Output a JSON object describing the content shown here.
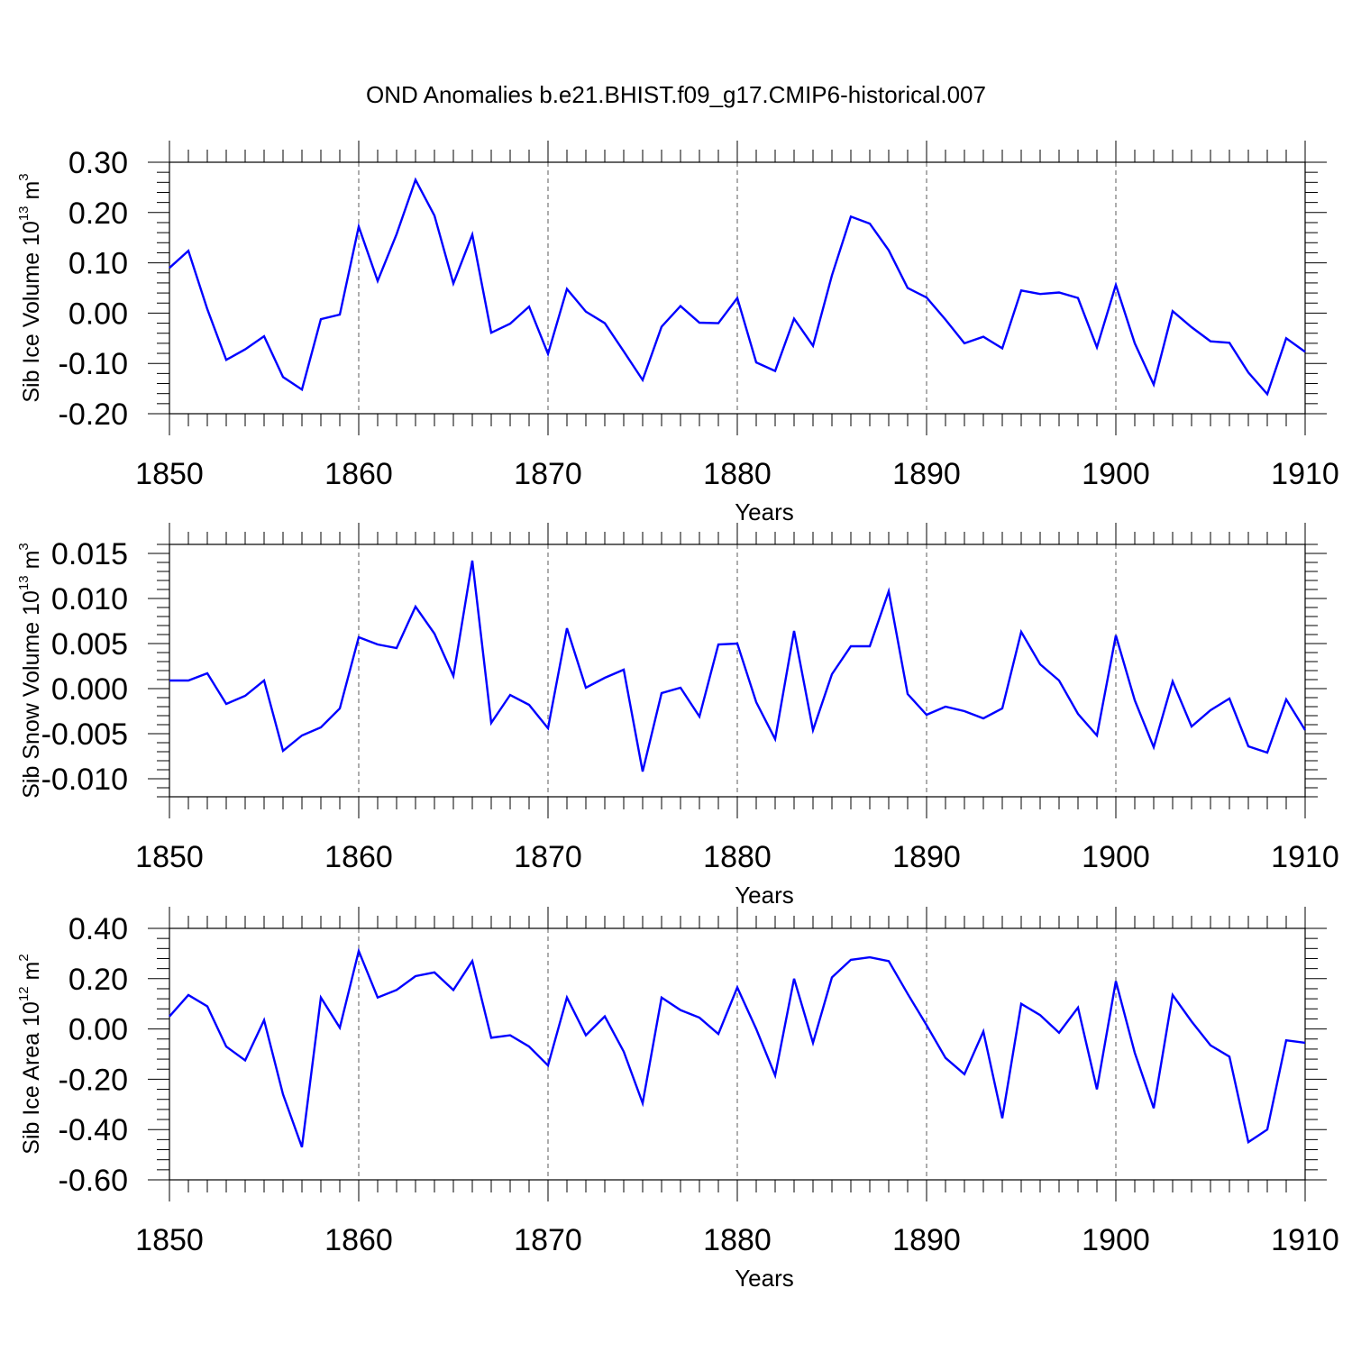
{
  "figure": {
    "title": "OND Anomalies b.e21.BHIST.f09_g17.CMIP6-historical.007",
    "line_color": "#0000ff"
  },
  "chart_data": [
    {
      "type": "line",
      "xlabel": "Years",
      "ylabel": {
        "prefix": "Sib Ice Volume 10",
        "exponent": "13",
        "unit": " m",
        "unit_exponent": "3"
      },
      "xlim": [
        1850,
        1910
      ],
      "ylim": [
        -0.2,
        0.3
      ],
      "x_ticks": [
        "1850",
        "1860",
        "1870",
        "1880",
        "1890",
        "1900",
        "1910"
      ],
      "y_ticks": [
        "-0.20",
        "-0.10",
        "0.00",
        "0.10",
        "0.20",
        "0.30"
      ],
      "grid": "dashed vertical lines at major x ticks",
      "series": [
        {
          "x": [
            1850,
            1851,
            1852,
            1853,
            1854,
            1855,
            1856,
            1857,
            1858,
            1859,
            1860,
            1861,
            1862,
            1863,
            1864,
            1865,
            1866,
            1867,
            1868,
            1869,
            1870,
            1871,
            1872,
            1873,
            1874,
            1875,
            1876,
            1877,
            1878,
            1879,
            1880,
            1881,
            1882,
            1883,
            1884,
            1885,
            1886,
            1887,
            1888,
            1889,
            1890,
            1891,
            1892,
            1893,
            1894,
            1895,
            1896,
            1897,
            1898,
            1899,
            1900,
            1901,
            1902,
            1903,
            1904,
            1905,
            1906,
            1907,
            1908,
            1909,
            1910
          ],
          "values": [
            0.09,
            0.124,
            0.008,
            -0.093,
            -0.072,
            -0.046,
            -0.127,
            -0.152,
            -0.012,
            -0.003,
            0.172,
            0.064,
            0.157,
            0.265,
            0.194,
            0.059,
            0.156,
            -0.039,
            -0.021,
            0.013,
            -0.081,
            0.048,
            0.003,
            -0.02,
            -0.076,
            -0.133,
            -0.027,
            0.014,
            -0.019,
            -0.02,
            0.03,
            -0.098,
            -0.115,
            -0.011,
            -0.065,
            0.075,
            0.192,
            0.178,
            0.125,
            0.05,
            0.031,
            -0.013,
            -0.06,
            -0.047,
            -0.07,
            0.045,
            0.038,
            0.041,
            0.03,
            -0.068,
            0.056,
            -0.06,
            -0.142,
            0.004,
            -0.028,
            -0.056,
            -0.059,
            -0.118,
            -0.161,
            -0.05,
            -0.077
          ]
        }
      ]
    },
    {
      "type": "line",
      "xlabel": "Years",
      "ylabel": {
        "prefix": "Sib Snow Volume 10",
        "exponent": "13",
        "unit": " m",
        "unit_exponent": "3"
      },
      "xlim": [
        1850,
        1910
      ],
      "ylim": [
        -0.012,
        0.016
      ],
      "x_ticks": [
        "1850",
        "1860",
        "1870",
        "1880",
        "1890",
        "1900",
        "1910"
      ],
      "y_ticks": [
        "-0.010",
        "-0.005",
        "0.000",
        "0.005",
        "0.010",
        "0.015"
      ],
      "grid": "dashed vertical lines at major x ticks",
      "series": [
        {
          "x": [
            1850,
            1851,
            1852,
            1853,
            1854,
            1855,
            1856,
            1857,
            1858,
            1859,
            1860,
            1861,
            1862,
            1863,
            1864,
            1865,
            1866,
            1867,
            1868,
            1869,
            1870,
            1871,
            1872,
            1873,
            1874,
            1875,
            1876,
            1877,
            1878,
            1879,
            1880,
            1881,
            1882,
            1883,
            1884,
            1885,
            1886,
            1887,
            1888,
            1889,
            1890,
            1891,
            1892,
            1893,
            1894,
            1895,
            1896,
            1897,
            1898,
            1899,
            1900,
            1901,
            1902,
            1903,
            1904,
            1905,
            1906,
            1907,
            1908,
            1909,
            1910
          ],
          "values": [
            0.0009,
            0.0009,
            0.0017,
            -0.0017,
            -0.0008,
            0.0009,
            -0.0069,
            -0.0052,
            -0.0043,
            -0.0022,
            0.0057,
            0.0049,
            0.0045,
            0.0091,
            0.0061,
            0.0014,
            0.0142,
            -0.0038,
            -0.0007,
            -0.0018,
            -0.0044,
            0.0067,
            0.0001,
            0.0012,
            0.0021,
            -0.0092,
            -0.0005,
            0.0001,
            -0.0031,
            0.0049,
            0.005,
            -0.0015,
            -0.0056,
            0.0064,
            -0.0046,
            0.0016,
            0.0047,
            0.0047,
            0.0108,
            -0.0006,
            -0.0029,
            -0.002,
            -0.0025,
            -0.0033,
            -0.0022,
            0.0063,
            0.0027,
            0.0009,
            -0.0028,
            -0.0052,
            0.0059,
            -0.0013,
            -0.0065,
            0.0008,
            -0.0042,
            -0.0024,
            -0.0011,
            -0.0064,
            -0.0071,
            -0.0012,
            -0.0046
          ]
        }
      ]
    },
    {
      "type": "line",
      "xlabel": "Years",
      "ylabel": {
        "prefix": "Sib Ice Area 10",
        "exponent": "12",
        "unit": " m",
        "unit_exponent": "2"
      },
      "xlim": [
        1850,
        1910
      ],
      "ylim": [
        -0.6,
        0.4
      ],
      "x_ticks": [
        "1850",
        "1860",
        "1870",
        "1880",
        "1890",
        "1900",
        "1910"
      ],
      "y_ticks": [
        "-0.60",
        "-0.40",
        "-0.20",
        "0.00",
        "0.20",
        "0.40"
      ],
      "grid": "dashed vertical lines at major x ticks",
      "series": [
        {
          "x": [
            1850,
            1851,
            1852,
            1853,
            1854,
            1855,
            1856,
            1857,
            1858,
            1859,
            1860,
            1861,
            1862,
            1863,
            1864,
            1865,
            1866,
            1867,
            1868,
            1869,
            1870,
            1871,
            1872,
            1873,
            1874,
            1875,
            1876,
            1877,
            1878,
            1879,
            1880,
            1881,
            1882,
            1883,
            1884,
            1885,
            1886,
            1887,
            1888,
            1889,
            1890,
            1891,
            1892,
            1893,
            1894,
            1895,
            1896,
            1897,
            1898,
            1899,
            1900,
            1901,
            1902,
            1903,
            1904,
            1905,
            1906,
            1907,
            1908,
            1909,
            1910
          ],
          "values": [
            0.05,
            0.135,
            0.09,
            -0.07,
            -0.125,
            0.035,
            -0.26,
            -0.47,
            0.125,
            0.005,
            0.31,
            0.125,
            0.155,
            0.21,
            0.225,
            0.155,
            0.27,
            -0.035,
            -0.025,
            -0.07,
            -0.145,
            0.125,
            -0.025,
            0.05,
            -0.09,
            -0.295,
            0.125,
            0.075,
            0.045,
            -0.02,
            0.165,
            0.0,
            -0.185,
            0.2,
            -0.055,
            0.205,
            0.275,
            0.285,
            0.27,
            0.14,
            0.015,
            -0.115,
            -0.18,
            -0.01,
            -0.355,
            0.1,
            0.055,
            -0.015,
            0.085,
            -0.24,
            0.19,
            -0.095,
            -0.315,
            0.135,
            0.03,
            -0.065,
            -0.11,
            -0.45,
            -0.4,
            -0.045,
            -0.055
          ]
        }
      ]
    }
  ]
}
